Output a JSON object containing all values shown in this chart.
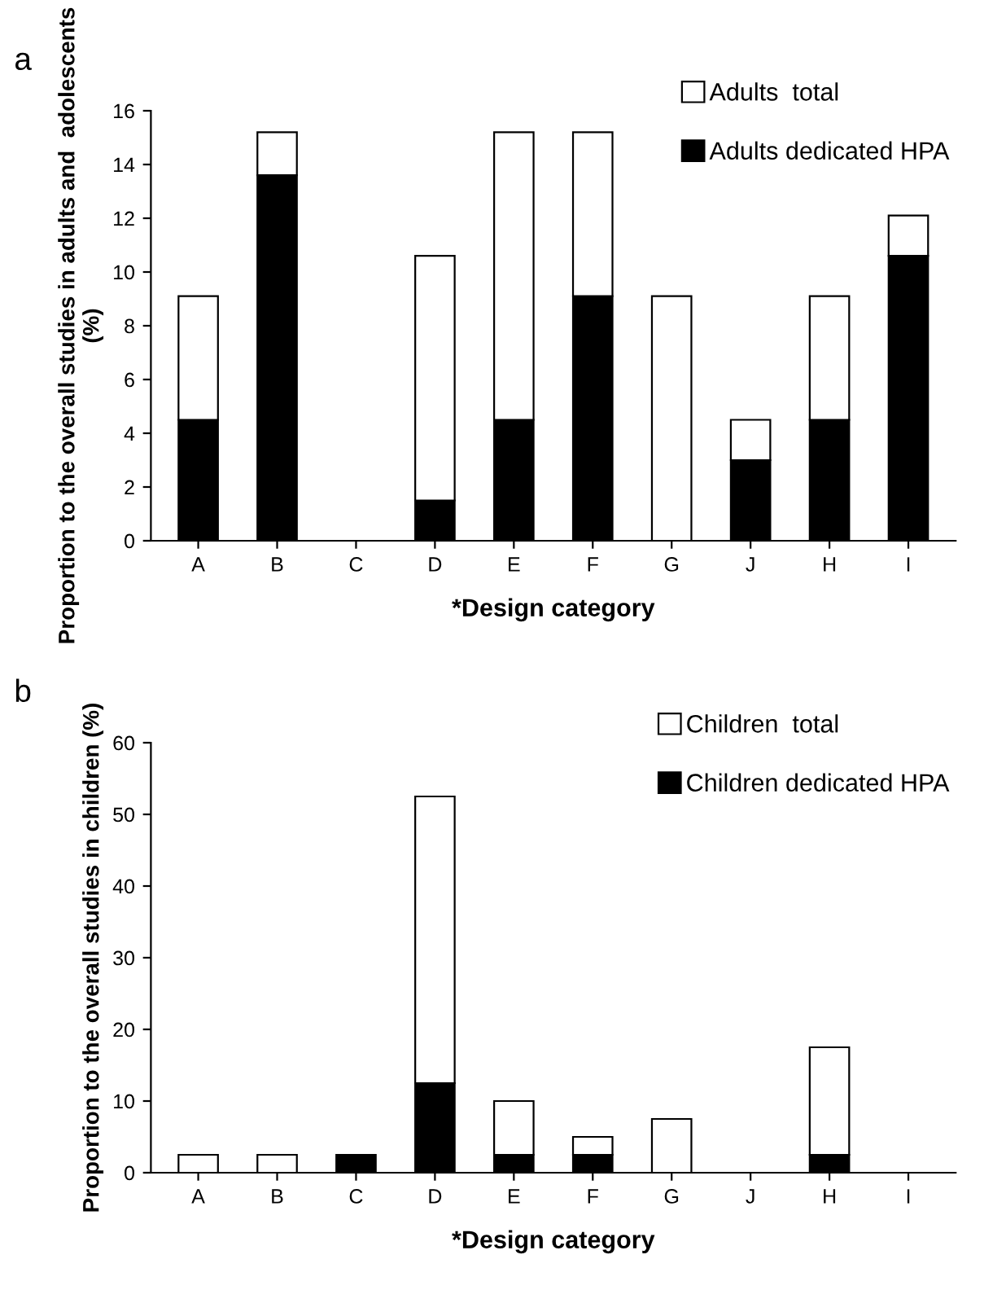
{
  "chart_data": [
    {
      "type": "bar",
      "stacked": true,
      "annotations": [
        "a"
      ],
      "xlabel": "*Design category",
      "ylabel": "Proportion to the overall studies in adults and  adolescents (%)",
      "categories": [
        "A",
        "B",
        "C",
        "D",
        "E",
        "F",
        "G",
        "J",
        "H",
        "I"
      ],
      "series": [
        {
          "name": "Adults dedicated HPA",
          "color": "#000000",
          "values": [
            4.5,
            13.6,
            0,
            1.5,
            4.5,
            9.1,
            0,
            3.0,
            4.5,
            10.6
          ]
        },
        {
          "name": "Adults  total",
          "color": "#ffffff",
          "values": [
            4.6,
            1.6,
            0,
            9.1,
            10.7,
            6.1,
            9.1,
            1.5,
            4.6,
            1.5
          ]
        }
      ],
      "ylim": [
        0,
        16
      ],
      "yticks": [
        0,
        2,
        4,
        6,
        8,
        10,
        12,
        14,
        16
      ],
      "grid": false,
      "legend": "top right"
    },
    {
      "type": "bar",
      "stacked": true,
      "annotations": [
        "b"
      ],
      "xlabel": "*Design category",
      "ylabel": "Proportion to the overall studies in children (%)",
      "categories": [
        "A",
        "B",
        "C",
        "D",
        "E",
        "F",
        "G",
        "J",
        "H",
        "I"
      ],
      "series": [
        {
          "name": "Children dedicated HPA",
          "color": "#000000",
          "values": [
            0,
            0,
            2.5,
            12.5,
            2.5,
            2.5,
            0,
            0,
            2.5,
            0
          ]
        },
        {
          "name": "Children  total",
          "color": "#ffffff",
          "values": [
            2.5,
            2.5,
            0,
            40,
            7.5,
            2.5,
            7.5,
            0,
            15,
            0
          ]
        }
      ],
      "ylim": [
        0,
        60
      ],
      "yticks": [
        0,
        10,
        20,
        30,
        40,
        50,
        60
      ],
      "grid": false,
      "legend": "top right"
    }
  ]
}
